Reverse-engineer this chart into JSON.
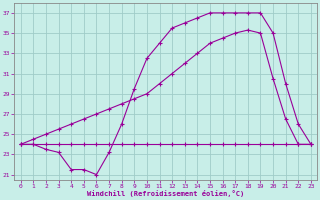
{
  "xlabel": "Windchill (Refroidissement éolien,°C)",
  "background_color": "#c8eee8",
  "grid_color": "#a0ccc8",
  "line_color": "#990099",
  "spine_color": "#888888",
  "xlim": [
    -0.5,
    23.5
  ],
  "ylim": [
    20.5,
    38.0
  ],
  "xticks": [
    0,
    1,
    2,
    3,
    4,
    5,
    6,
    7,
    8,
    9,
    10,
    11,
    12,
    13,
    14,
    15,
    16,
    17,
    18,
    19,
    20,
    21,
    22,
    23
  ],
  "yticks": [
    21,
    23,
    25,
    27,
    29,
    31,
    33,
    35,
    37
  ],
  "series1_x": [
    0,
    1,
    2,
    3,
    4,
    5,
    6,
    7,
    8,
    9,
    10,
    11,
    12,
    13,
    14,
    15,
    16,
    17,
    18,
    19,
    20,
    21,
    22,
    23
  ],
  "series1_y": [
    24.0,
    24.0,
    23.5,
    23.2,
    21.5,
    21.5,
    21.0,
    23.2,
    26.0,
    29.5,
    32.5,
    34.0,
    35.5,
    36.0,
    36.5,
    37.0,
    37.0,
    37.0,
    37.0,
    37.0,
    35.0,
    30.0,
    26.0,
    24.0
  ],
  "series2_x": [
    0,
    1,
    2,
    3,
    4,
    5,
    6,
    7,
    8,
    9,
    10,
    11,
    12,
    13,
    14,
    15,
    16,
    17,
    18,
    19,
    20,
    21,
    22,
    23
  ],
  "series2_y": [
    24.0,
    24.5,
    25.0,
    25.5,
    26.0,
    26.5,
    27.0,
    27.5,
    28.0,
    28.5,
    29.0,
    30.0,
    31.0,
    32.0,
    33.0,
    34.0,
    34.5,
    35.0,
    35.3,
    35.0,
    30.5,
    26.5,
    24.0,
    24.0
  ],
  "series3_x": [
    0,
    1,
    2,
    3,
    4,
    5,
    6,
    7,
    8,
    9,
    10,
    11,
    12,
    13,
    14,
    15,
    16,
    17,
    18,
    19,
    20,
    21,
    22,
    23
  ],
  "series3_y": [
    24.0,
    24.0,
    24.0,
    24.0,
    24.0,
    24.0,
    24.0,
    24.0,
    24.0,
    24.0,
    24.0,
    24.0,
    24.0,
    24.0,
    24.0,
    24.0,
    24.0,
    24.0,
    24.0,
    24.0,
    24.0,
    24.0,
    24.0,
    24.0
  ]
}
